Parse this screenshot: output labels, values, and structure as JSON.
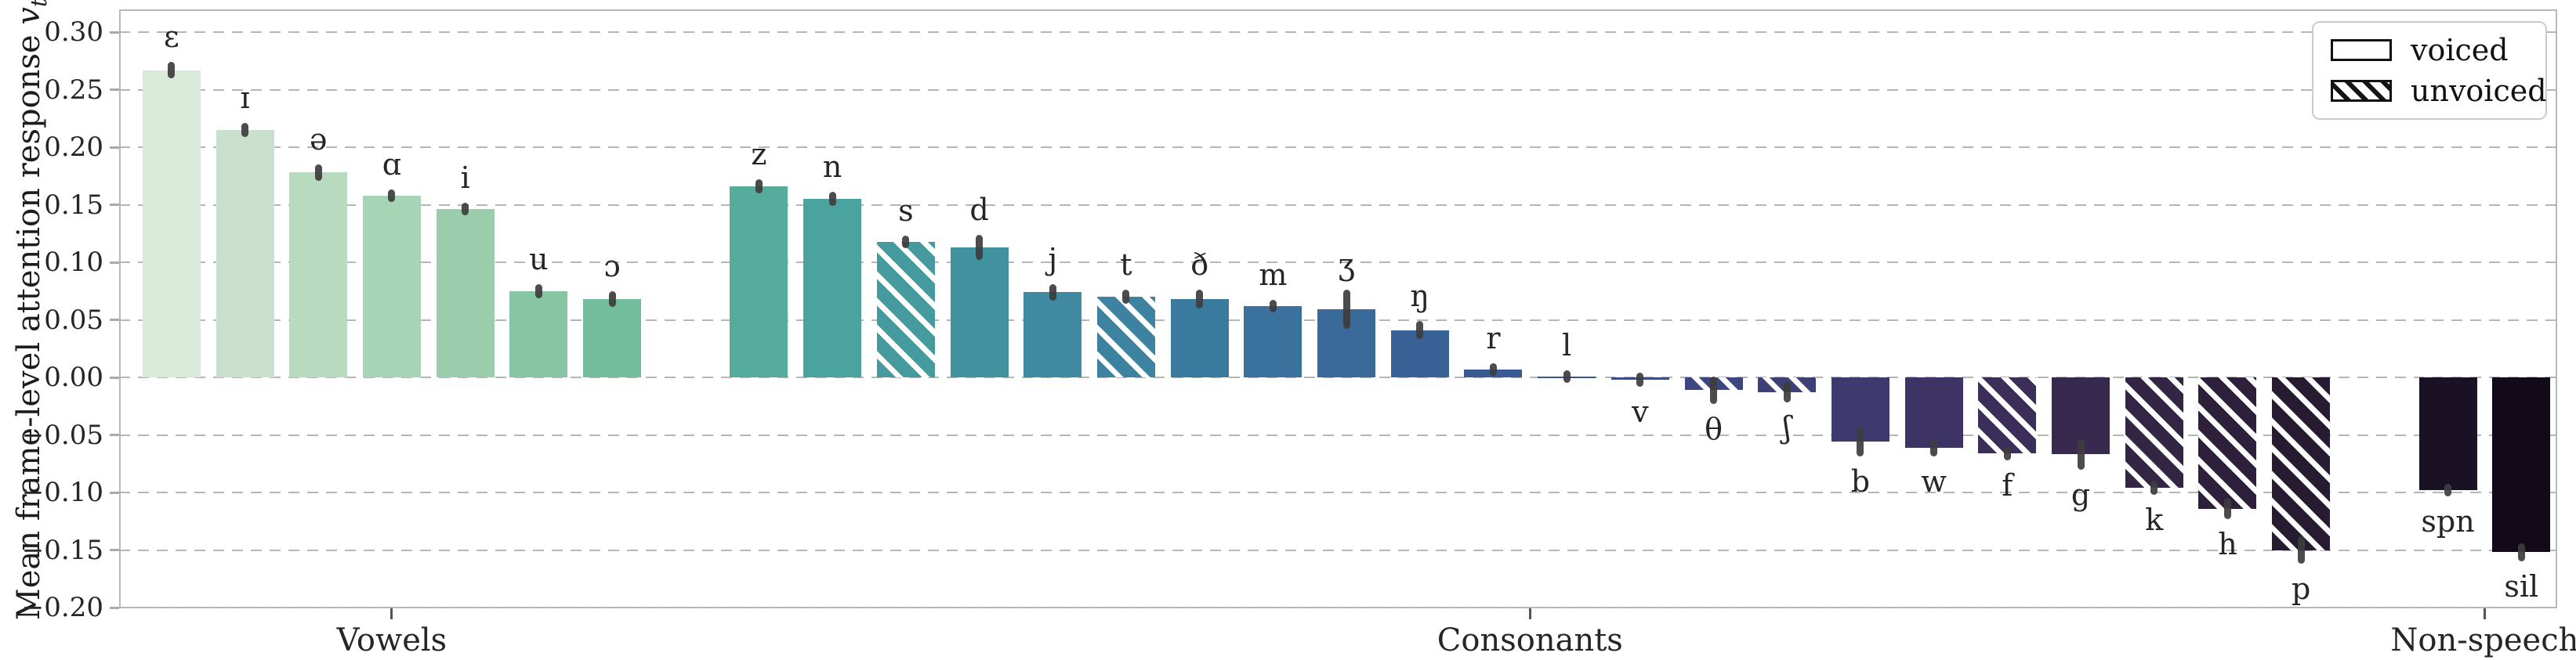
{
  "chart_data": {
    "type": "bar",
    "title": "",
    "xlabel": "",
    "ylabel": "Mean frame-level attention response v_t",
    "ylabel_prefix": "Mean frame-level attention response ",
    "ylabel_var": "v",
    "ylabel_subscript": "t",
    "ylim": [
      -0.2,
      0.32
    ],
    "grid": "horizontal-dashed",
    "legend_position": "upper-right",
    "legend": [
      {
        "label": "voiced",
        "hatched": false
      },
      {
        "label": "unvoiced",
        "hatched": true
      }
    ],
    "yticks": [
      {
        "value": 0.3,
        "label": "0.30"
      },
      {
        "value": 0.25,
        "label": "0.25"
      },
      {
        "value": 0.2,
        "label": "0.20"
      },
      {
        "value": 0.15,
        "label": "0.15"
      },
      {
        "value": 0.1,
        "label": "0.10"
      },
      {
        "value": 0.05,
        "label": "0.05"
      },
      {
        "value": 0.0,
        "label": "0.00"
      },
      {
        "value": -0.05,
        "label": "−0.05"
      },
      {
        "value": -0.1,
        "label": "−0.10"
      },
      {
        "value": -0.15,
        "label": "−0.15"
      },
      {
        "value": -0.2,
        "label": "−0.20"
      }
    ],
    "groups": [
      {
        "label": "Vowels",
        "bars": [
          {
            "label": "ɛ",
            "value": 0.267,
            "err": 0.007,
            "voiced": true,
            "color": "#d9e9da"
          },
          {
            "label": "ɪ",
            "value": 0.215,
            "err": 0.006,
            "voiced": true,
            "color": "#c9e1cc"
          },
          {
            "label": "ə",
            "value": 0.178,
            "err": 0.007,
            "voiced": true,
            "color": "#b8dabf"
          },
          {
            "label": "ɑ",
            "value": 0.158,
            "err": 0.005,
            "voiced": true,
            "color": "#a7d4b4"
          },
          {
            "label": "i",
            "value": 0.146,
            "err": 0.005,
            "voiced": true,
            "color": "#99cdac"
          },
          {
            "label": "u",
            "value": 0.075,
            "err": 0.006,
            "voiced": true,
            "color": "#87c5a3"
          },
          {
            "label": "ɔ",
            "value": 0.068,
            "err": 0.007,
            "voiced": true,
            "color": "#73bc9c"
          }
        ]
      },
      {
        "label": "Consonants",
        "bars": [
          {
            "label": "z",
            "value": 0.166,
            "err": 0.006,
            "voiced": true,
            "color": "#55ab9c"
          },
          {
            "label": "n",
            "value": 0.155,
            "err": 0.006,
            "voiced": true,
            "color": "#4aa39f"
          },
          {
            "label": "s",
            "value": 0.118,
            "err": 0.004,
            "voiced": false,
            "color": "#459a9e"
          },
          {
            "label": "d",
            "value": 0.113,
            "err": 0.011,
            "voiced": true,
            "color": "#41929f"
          },
          {
            "label": "j",
            "value": 0.074,
            "err": 0.007,
            "voiced": true,
            "color": "#3f8aa0"
          },
          {
            "label": "t",
            "value": 0.07,
            "err": 0.006,
            "voiced": false,
            "color": "#3d82a0"
          },
          {
            "label": "ð",
            "value": 0.068,
            "err": 0.008,
            "voiced": true,
            "color": "#3b7a9f"
          },
          {
            "label": "m",
            "value": 0.062,
            "err": 0.005,
            "voiced": true,
            "color": "#3a729d"
          },
          {
            "label": "ʒ",
            "value": 0.059,
            "err": 0.017,
            "voiced": true,
            "color": "#396a9a"
          },
          {
            "label": "ŋ",
            "value": 0.041,
            "err": 0.008,
            "voiced": true,
            "color": "#396296"
          },
          {
            "label": "r",
            "value": 0.007,
            "err": 0.005,
            "voiced": true,
            "color": "#3a5a92"
          },
          {
            "label": "l",
            "value": 0.001,
            "err": 0.005,
            "voiced": true,
            "color": "#3b538c"
          },
          {
            "label": "v",
            "value": -0.002,
            "err": 0.006,
            "voiced": true,
            "color": "#3c4c86"
          },
          {
            "label": "θ",
            "value": -0.011,
            "err": 0.012,
            "voiced": false,
            "color": "#3d4680"
          },
          {
            "label": "ʃ",
            "value": -0.013,
            "err": 0.009,
            "voiced": false,
            "color": "#3e4078"
          },
          {
            "label": "b",
            "value": -0.056,
            "err": 0.013,
            "voiced": true,
            "color": "#3e3a6f"
          },
          {
            "label": "w",
            "value": -0.061,
            "err": 0.008,
            "voiced": true,
            "color": "#3d3465"
          },
          {
            "label": "f",
            "value": -0.066,
            "err": 0.006,
            "voiced": false,
            "color": "#3b2f5a"
          },
          {
            "label": "g",
            "value": -0.067,
            "err": 0.013,
            "voiced": true,
            "color": "#38294f"
          },
          {
            "label": "k",
            "value": -0.096,
            "err": 0.006,
            "voiced": false,
            "color": "#332544"
          },
          {
            "label": "h",
            "value": -0.114,
            "err": 0.009,
            "voiced": false,
            "color": "#2e203a"
          },
          {
            "label": "p",
            "value": -0.15,
            "err": 0.012,
            "voiced": false,
            "color": "#271b31"
          }
        ]
      },
      {
        "label": "Non-speech",
        "bars": [
          {
            "label": "spn",
            "value": -0.098,
            "err": 0.004,
            "voiced": true,
            "color": "#1a1125"
          },
          {
            "label": "sil",
            "value": -0.152,
            "err": 0.008,
            "voiced": true,
            "color": "#120a19"
          }
        ]
      }
    ]
  }
}
